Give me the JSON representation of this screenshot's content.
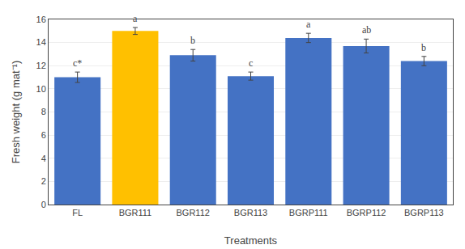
{
  "chart_data": {
    "type": "bar",
    "categories": [
      "FL",
      "BGR111",
      "BGR112",
      "BGR113",
      "BGRP111",
      "BGRP112",
      "BGRP113"
    ],
    "values": [
      11.0,
      15.0,
      12.9,
      11.1,
      14.4,
      13.7,
      12.4
    ],
    "errors": [
      0.45,
      0.3,
      0.5,
      0.35,
      0.4,
      0.6,
      0.4
    ],
    "colors": [
      "#4472C4",
      "#FFC000",
      "#4472C4",
      "#4472C4",
      "#4472C4",
      "#4472C4",
      "#4472C4"
    ],
    "annotations": [
      "c*",
      "a",
      "b",
      "c",
      "a",
      "ab",
      "b"
    ],
    "xlabel": "Treatments",
    "ylabel": "Fresh weight (g mat⁻¹)",
    "ylim": [
      0,
      16
    ],
    "yticks": [
      0,
      2,
      4,
      6,
      8,
      10,
      12,
      14,
      16
    ],
    "grid": true
  }
}
